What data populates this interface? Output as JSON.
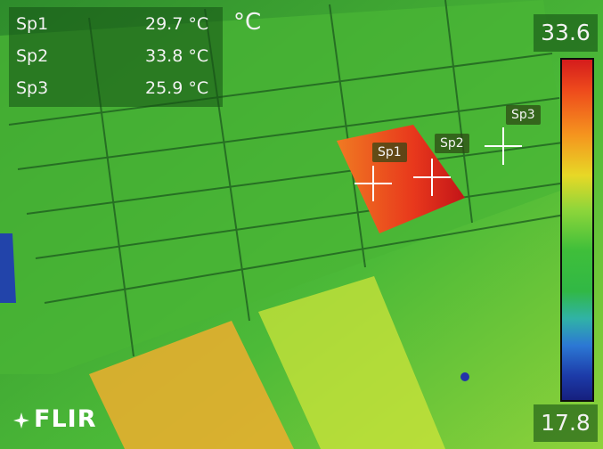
{
  "measurements": [
    {
      "label": "Sp1",
      "value": "29.7 °C"
    },
    {
      "label": "Sp2",
      "value": "33.8 °C"
    },
    {
      "label": "Sp3",
      "value": "25.9 °C"
    }
  ],
  "unit": "°C",
  "scale": {
    "max": "33.6",
    "min": "17.8"
  },
  "brand": "FLIR",
  "colors": {
    "hot_spot": "#d41c1c",
    "panel_green": "#3fbf3a",
    "scale_cold": "#16207e"
  }
}
